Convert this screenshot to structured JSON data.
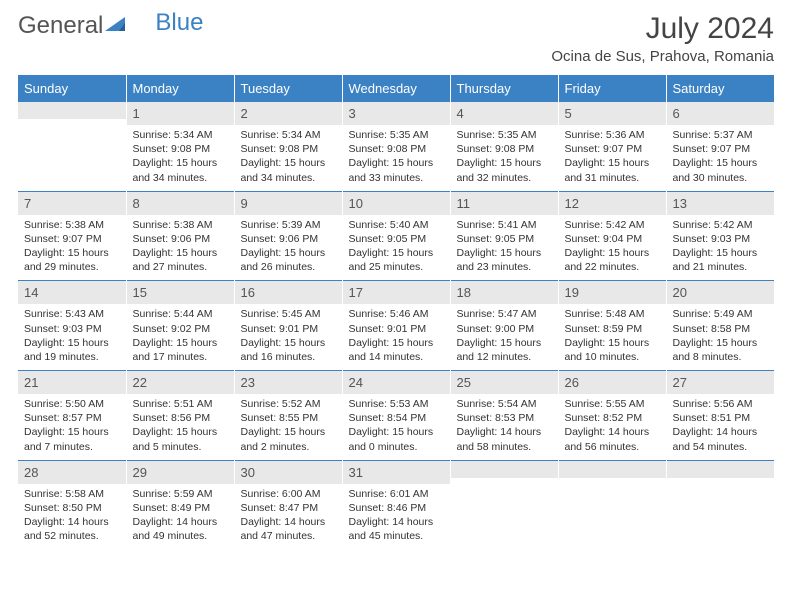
{
  "logo": {
    "part1": "General",
    "part2": "Blue"
  },
  "title": "July 2024",
  "location": "Ocina de Sus, Prahova, Romania",
  "colors": {
    "header_bg": "#3b82c4",
    "header_text": "#ffffff",
    "daynum_bg": "#e8e8e8",
    "row_divider": "#3b82c4",
    "text": "#333333",
    "logo_gray": "#555555",
    "logo_blue": "#3b82c4"
  },
  "typography": {
    "month_title_fontsize": 30,
    "location_fontsize": 15,
    "dayheader_fontsize": 13,
    "daynum_fontsize": 13,
    "body_fontsize": 10.5
  },
  "day_headers": [
    "Sunday",
    "Monday",
    "Tuesday",
    "Wednesday",
    "Thursday",
    "Friday",
    "Saturday"
  ],
  "weeks": [
    [
      {
        "n": "",
        "lines": [
          "",
          "",
          "",
          ""
        ]
      },
      {
        "n": "1",
        "lines": [
          "Sunrise: 5:34 AM",
          "Sunset: 9:08 PM",
          "Daylight: 15 hours",
          "and 34 minutes."
        ]
      },
      {
        "n": "2",
        "lines": [
          "Sunrise: 5:34 AM",
          "Sunset: 9:08 PM",
          "Daylight: 15 hours",
          "and 34 minutes."
        ]
      },
      {
        "n": "3",
        "lines": [
          "Sunrise: 5:35 AM",
          "Sunset: 9:08 PM",
          "Daylight: 15 hours",
          "and 33 minutes."
        ]
      },
      {
        "n": "4",
        "lines": [
          "Sunrise: 5:35 AM",
          "Sunset: 9:08 PM",
          "Daylight: 15 hours",
          "and 32 minutes."
        ]
      },
      {
        "n": "5",
        "lines": [
          "Sunrise: 5:36 AM",
          "Sunset: 9:07 PM",
          "Daylight: 15 hours",
          "and 31 minutes."
        ]
      },
      {
        "n": "6",
        "lines": [
          "Sunrise: 5:37 AM",
          "Sunset: 9:07 PM",
          "Daylight: 15 hours",
          "and 30 minutes."
        ]
      }
    ],
    [
      {
        "n": "7",
        "lines": [
          "Sunrise: 5:38 AM",
          "Sunset: 9:07 PM",
          "Daylight: 15 hours",
          "and 29 minutes."
        ]
      },
      {
        "n": "8",
        "lines": [
          "Sunrise: 5:38 AM",
          "Sunset: 9:06 PM",
          "Daylight: 15 hours",
          "and 27 minutes."
        ]
      },
      {
        "n": "9",
        "lines": [
          "Sunrise: 5:39 AM",
          "Sunset: 9:06 PM",
          "Daylight: 15 hours",
          "and 26 minutes."
        ]
      },
      {
        "n": "10",
        "lines": [
          "Sunrise: 5:40 AM",
          "Sunset: 9:05 PM",
          "Daylight: 15 hours",
          "and 25 minutes."
        ]
      },
      {
        "n": "11",
        "lines": [
          "Sunrise: 5:41 AM",
          "Sunset: 9:05 PM",
          "Daylight: 15 hours",
          "and 23 minutes."
        ]
      },
      {
        "n": "12",
        "lines": [
          "Sunrise: 5:42 AM",
          "Sunset: 9:04 PM",
          "Daylight: 15 hours",
          "and 22 minutes."
        ]
      },
      {
        "n": "13",
        "lines": [
          "Sunrise: 5:42 AM",
          "Sunset: 9:03 PM",
          "Daylight: 15 hours",
          "and 21 minutes."
        ]
      }
    ],
    [
      {
        "n": "14",
        "lines": [
          "Sunrise: 5:43 AM",
          "Sunset: 9:03 PM",
          "Daylight: 15 hours",
          "and 19 minutes."
        ]
      },
      {
        "n": "15",
        "lines": [
          "Sunrise: 5:44 AM",
          "Sunset: 9:02 PM",
          "Daylight: 15 hours",
          "and 17 minutes."
        ]
      },
      {
        "n": "16",
        "lines": [
          "Sunrise: 5:45 AM",
          "Sunset: 9:01 PM",
          "Daylight: 15 hours",
          "and 16 minutes."
        ]
      },
      {
        "n": "17",
        "lines": [
          "Sunrise: 5:46 AM",
          "Sunset: 9:01 PM",
          "Daylight: 15 hours",
          "and 14 minutes."
        ]
      },
      {
        "n": "18",
        "lines": [
          "Sunrise: 5:47 AM",
          "Sunset: 9:00 PM",
          "Daylight: 15 hours",
          "and 12 minutes."
        ]
      },
      {
        "n": "19",
        "lines": [
          "Sunrise: 5:48 AM",
          "Sunset: 8:59 PM",
          "Daylight: 15 hours",
          "and 10 minutes."
        ]
      },
      {
        "n": "20",
        "lines": [
          "Sunrise: 5:49 AM",
          "Sunset: 8:58 PM",
          "Daylight: 15 hours",
          "and 8 minutes."
        ]
      }
    ],
    [
      {
        "n": "21",
        "lines": [
          "Sunrise: 5:50 AM",
          "Sunset: 8:57 PM",
          "Daylight: 15 hours",
          "and 7 minutes."
        ]
      },
      {
        "n": "22",
        "lines": [
          "Sunrise: 5:51 AM",
          "Sunset: 8:56 PM",
          "Daylight: 15 hours",
          "and 5 minutes."
        ]
      },
      {
        "n": "23",
        "lines": [
          "Sunrise: 5:52 AM",
          "Sunset: 8:55 PM",
          "Daylight: 15 hours",
          "and 2 minutes."
        ]
      },
      {
        "n": "24",
        "lines": [
          "Sunrise: 5:53 AM",
          "Sunset: 8:54 PM",
          "Daylight: 15 hours",
          "and 0 minutes."
        ]
      },
      {
        "n": "25",
        "lines": [
          "Sunrise: 5:54 AM",
          "Sunset: 8:53 PM",
          "Daylight: 14 hours",
          "and 58 minutes."
        ]
      },
      {
        "n": "26",
        "lines": [
          "Sunrise: 5:55 AM",
          "Sunset: 8:52 PM",
          "Daylight: 14 hours",
          "and 56 minutes."
        ]
      },
      {
        "n": "27",
        "lines": [
          "Sunrise: 5:56 AM",
          "Sunset: 8:51 PM",
          "Daylight: 14 hours",
          "and 54 minutes."
        ]
      }
    ],
    [
      {
        "n": "28",
        "lines": [
          "Sunrise: 5:58 AM",
          "Sunset: 8:50 PM",
          "Daylight: 14 hours",
          "and 52 minutes."
        ]
      },
      {
        "n": "29",
        "lines": [
          "Sunrise: 5:59 AM",
          "Sunset: 8:49 PM",
          "Daylight: 14 hours",
          "and 49 minutes."
        ]
      },
      {
        "n": "30",
        "lines": [
          "Sunrise: 6:00 AM",
          "Sunset: 8:47 PM",
          "Daylight: 14 hours",
          "and 47 minutes."
        ]
      },
      {
        "n": "31",
        "lines": [
          "Sunrise: 6:01 AM",
          "Sunset: 8:46 PM",
          "Daylight: 14 hours",
          "and 45 minutes."
        ]
      },
      {
        "n": "",
        "lines": [
          "",
          "",
          "",
          ""
        ]
      },
      {
        "n": "",
        "lines": [
          "",
          "",
          "",
          ""
        ]
      },
      {
        "n": "",
        "lines": [
          "",
          "",
          "",
          ""
        ]
      }
    ]
  ]
}
